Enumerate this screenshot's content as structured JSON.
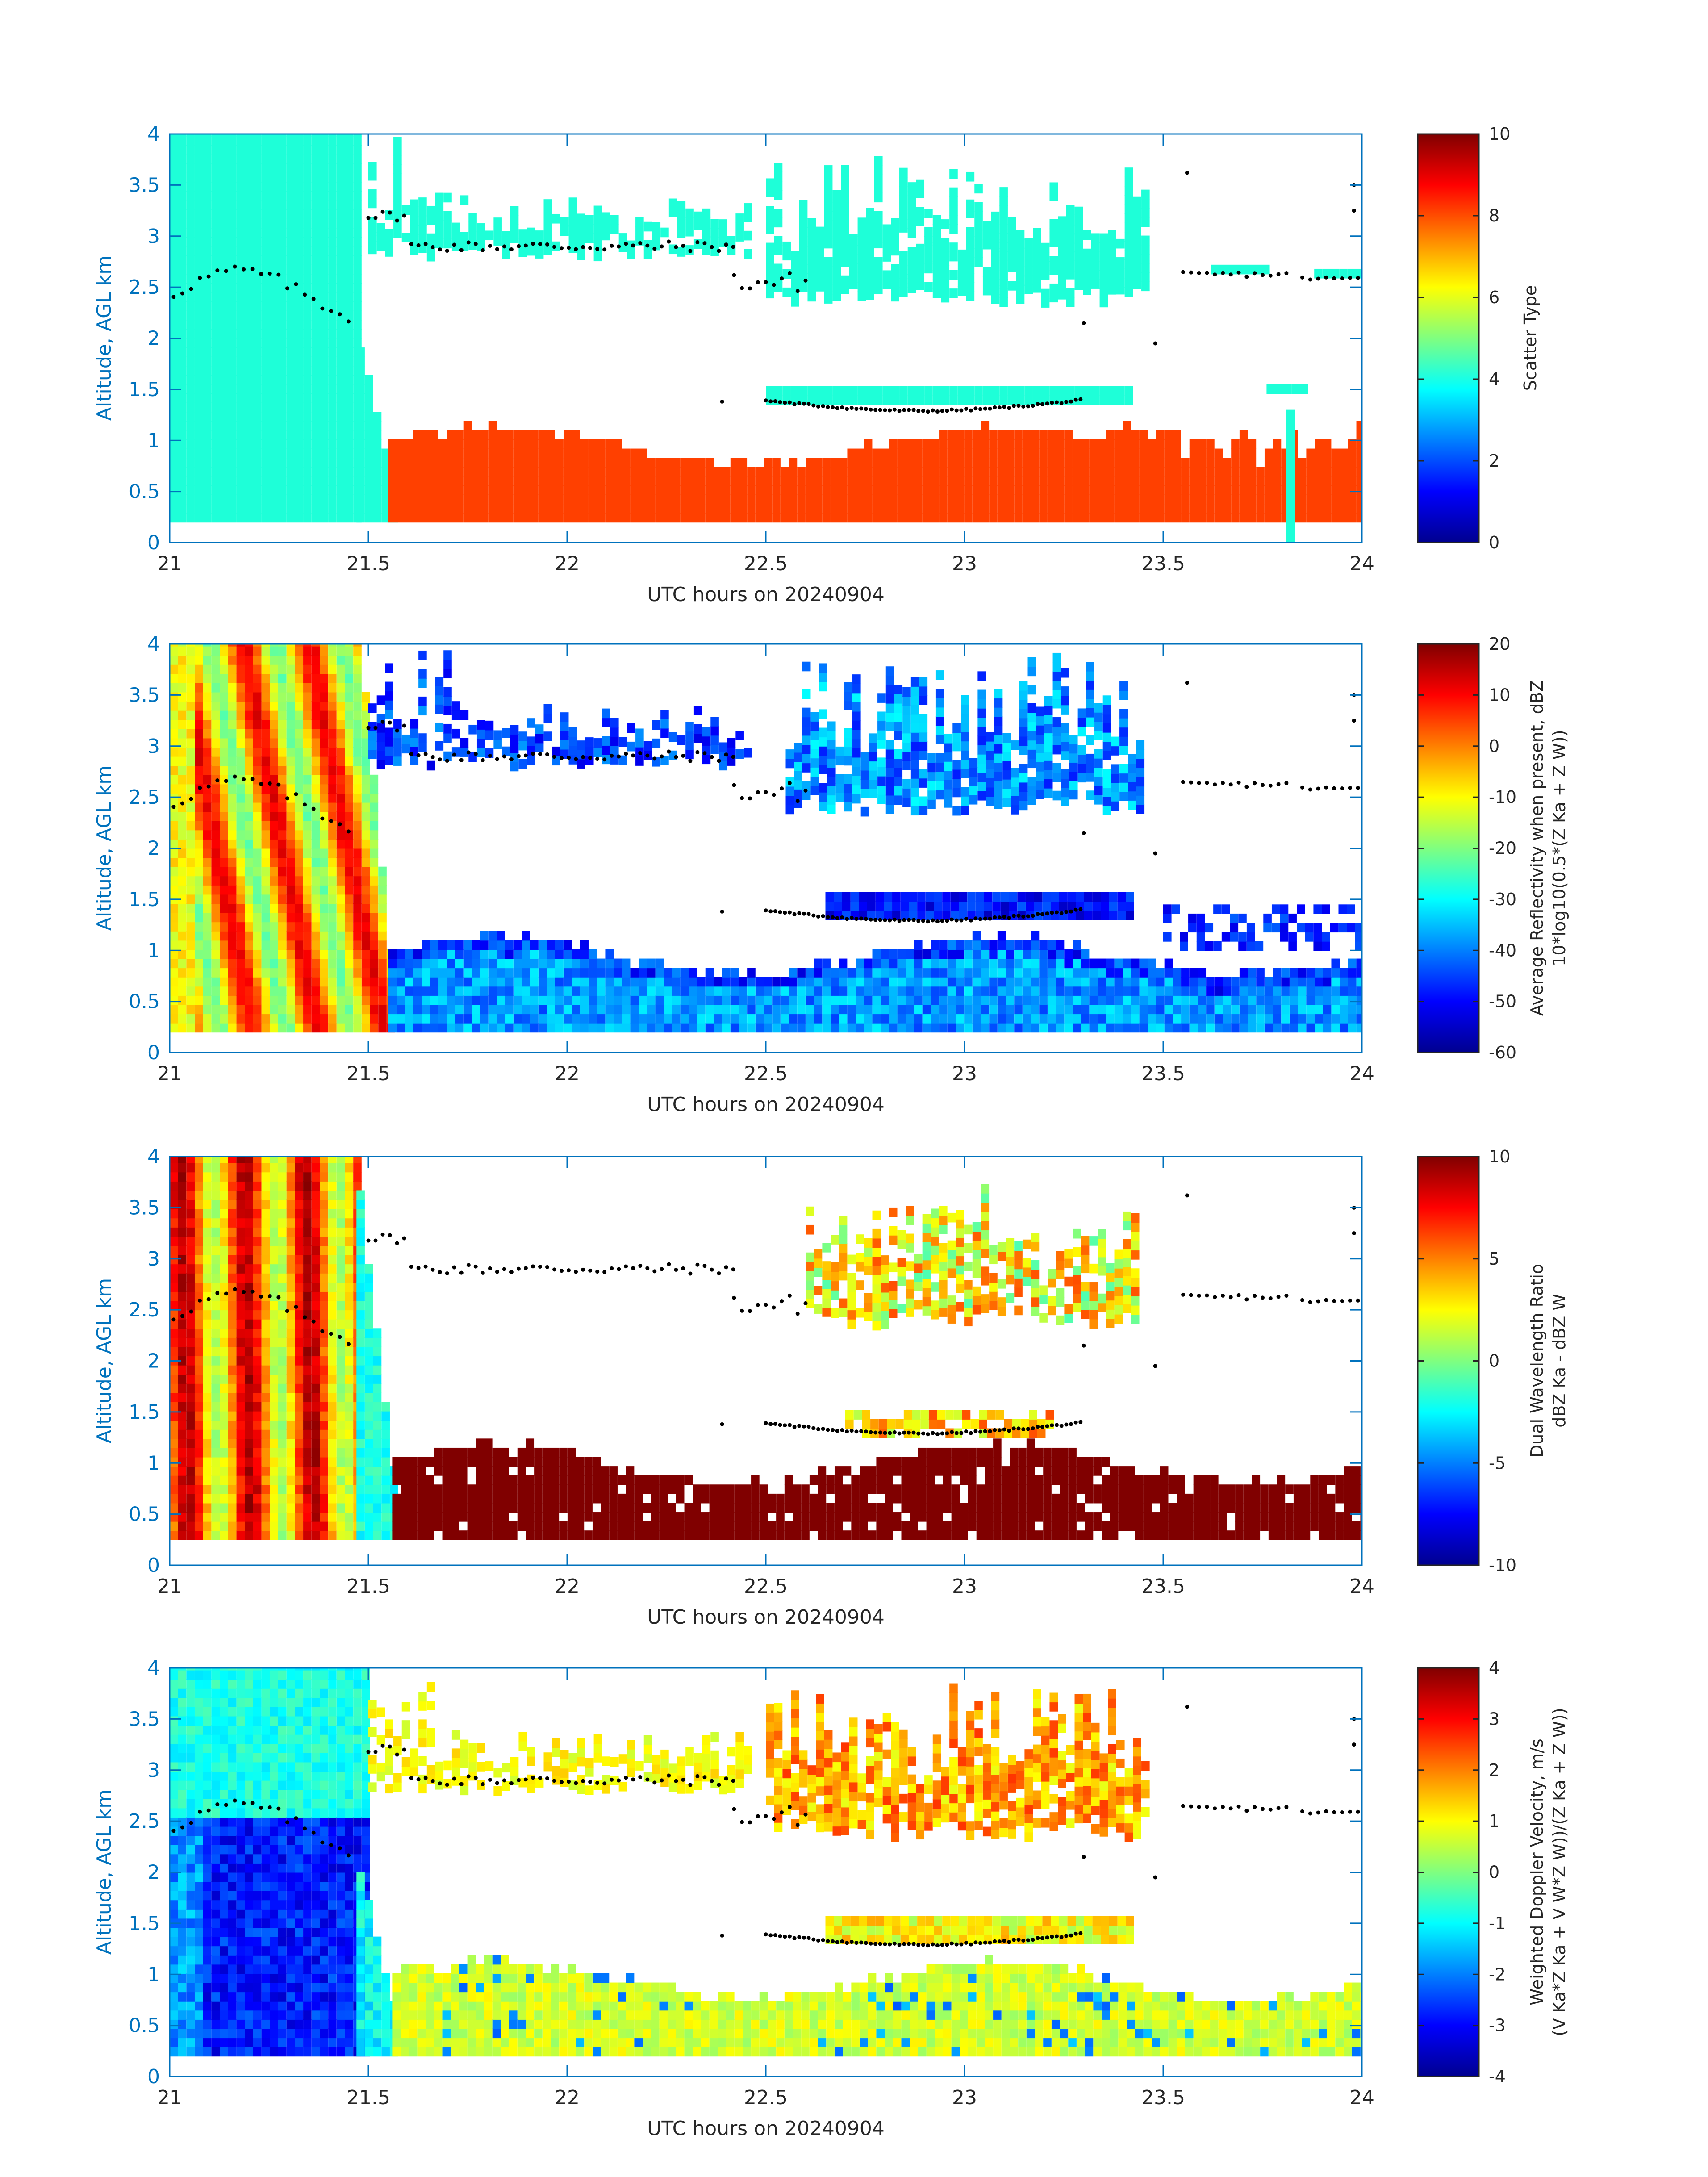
{
  "chart_data": [
    {
      "type": "heatmap",
      "panel": "scatter-type",
      "xlabel": "UTC hours on 20240904",
      "ylabel": "Altitude, AGL km",
      "xlim": [
        21,
        24
      ],
      "ylim": [
        0,
        4
      ],
      "xticks": [
        "21",
        "21.5",
        "22",
        "22.5",
        "23",
        "23.5",
        "24"
      ],
      "yticks": [
        "0",
        "0.5",
        "1",
        "1.5",
        "2",
        "2.5",
        "3",
        "3.5",
        "4"
      ],
      "colorbar": {
        "label": "Scatter Type",
        "range": [
          0,
          10
        ],
        "ticks": [
          "0",
          "2",
          "4",
          "6",
          "8",
          "10"
        ]
      }
    },
    {
      "type": "heatmap",
      "panel": "reflectivity",
      "xlabel": "UTC hours on 20240904",
      "ylabel": "Altitude, AGL km",
      "xlim": [
        21,
        24
      ],
      "ylim": [
        0,
        4
      ],
      "xticks": [
        "21",
        "21.5",
        "22",
        "22.5",
        "23",
        "23.5",
        "24"
      ],
      "yticks": [
        "0",
        "0.5",
        "1",
        "1.5",
        "2",
        "2.5",
        "3",
        "3.5",
        "4"
      ],
      "colorbar": {
        "label": "Average Reflectivity when present, dBZ",
        "label2": "10*log10(0.5*(Z Ka + Z W))",
        "range": [
          -60,
          20
        ],
        "ticks": [
          "-60",
          "-50",
          "-40",
          "-30",
          "-20",
          "-10",
          "0",
          "10",
          "20"
        ]
      }
    },
    {
      "type": "heatmap",
      "panel": "dual-wavelength-ratio",
      "xlabel": "UTC hours on 20240904",
      "ylabel": "Altitude, AGL km",
      "xlim": [
        21,
        24
      ],
      "ylim": [
        0,
        4
      ],
      "xticks": [
        "21",
        "21.5",
        "22",
        "22.5",
        "23",
        "23.5",
        "24"
      ],
      "yticks": [
        "0",
        "0.5",
        "1",
        "1.5",
        "2",
        "2.5",
        "3",
        "3.5",
        "4"
      ],
      "colorbar": {
        "label": "Dual Wavelength Ratio",
        "label2": "dBZ Ka - dBZ W",
        "range": [
          -10,
          10
        ],
        "ticks": [
          "-10",
          "-5",
          "0",
          "5",
          "10"
        ]
      }
    },
    {
      "type": "heatmap",
      "panel": "doppler-velocity",
      "xlabel": "UTC hours on 20240904",
      "ylabel": "Altitude, AGL km",
      "xlim": [
        21,
        24
      ],
      "ylim": [
        0,
        4
      ],
      "xticks": [
        "21",
        "21.5",
        "22",
        "22.5",
        "23",
        "23.5",
        "24"
      ],
      "yticks": [
        "0",
        "0.5",
        "1",
        "1.5",
        "2",
        "2.5",
        "3",
        "3.5",
        "4"
      ],
      "colorbar": {
        "label": "Weighted Doppler Velocity, m/s",
        "label2": "(V Ka*Z Ka + V W*Z W))/(Z Ka + Z W))",
        "range": [
          -4,
          4
        ],
        "ticks": [
          "-4",
          "-3",
          "-2",
          "-1",
          "0",
          "1",
          "2",
          "3",
          "4"
        ]
      }
    }
  ],
  "colors": {
    "axis_blue": "#0072bd",
    "text": "#262626",
    "liquid_cyan": "#1effd8",
    "drizzle_orange": "#ff4000"
  }
}
